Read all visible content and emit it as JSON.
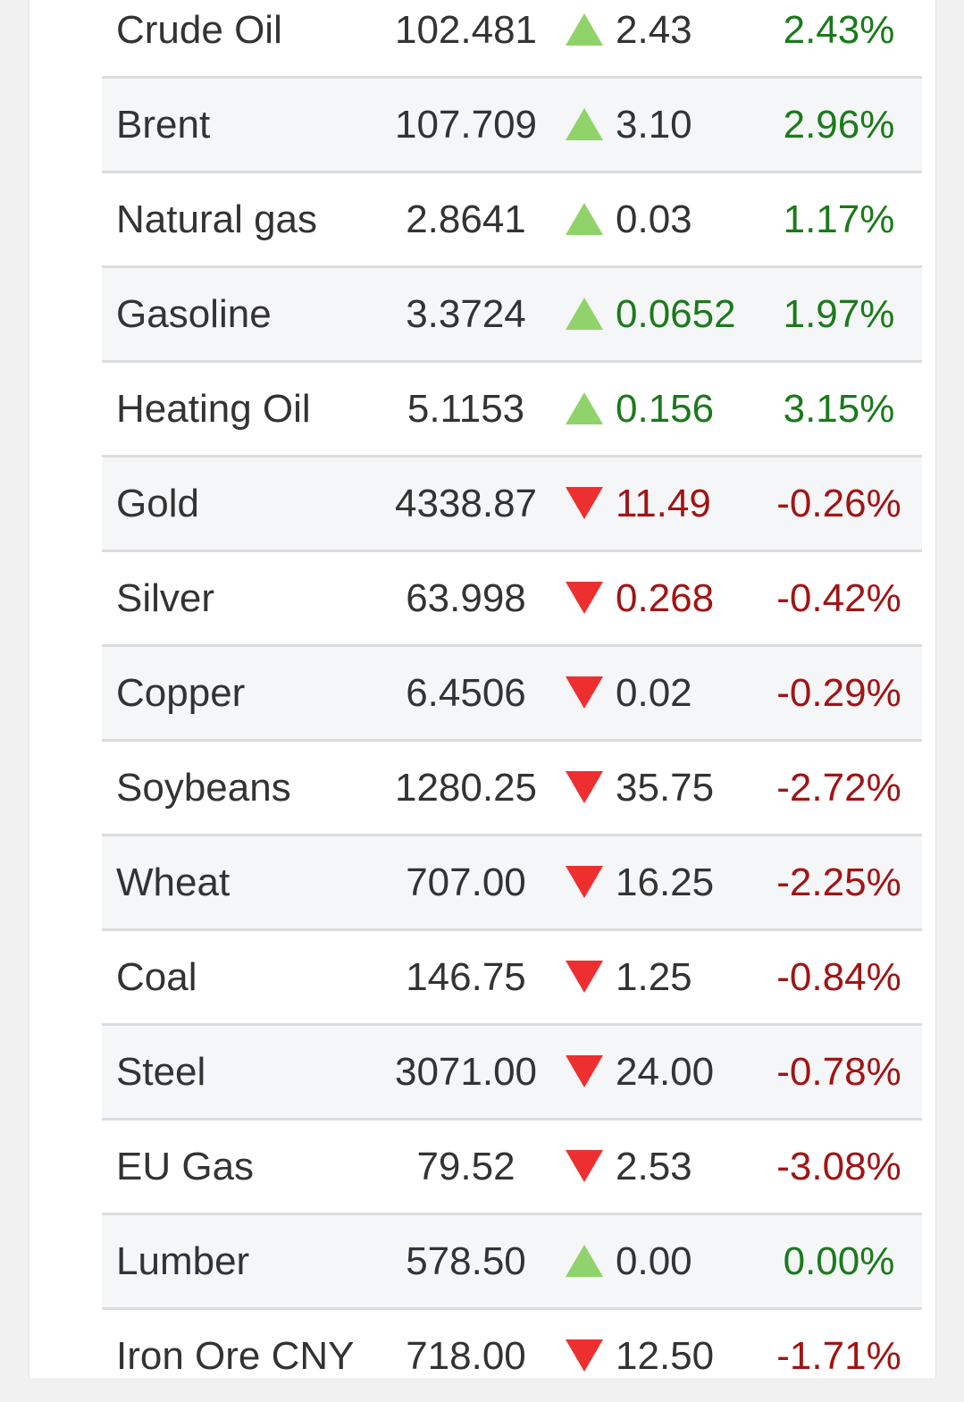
{
  "colors": {
    "up_arrow": "#8fd36a",
    "down_arrow": "#ee2f2f",
    "up_text": "#1a7a1a",
    "down_text": "#a11414"
  },
  "commodities": [
    {
      "name": "Crude Oil",
      "price": "102.481",
      "direction": "up",
      "change": "2.43",
      "change_colored": false,
      "percent": "2.43%"
    },
    {
      "name": "Brent",
      "price": "107.709",
      "direction": "up",
      "change": "3.10",
      "change_colored": false,
      "percent": "2.96%"
    },
    {
      "name": "Natural gas",
      "price": "2.8641",
      "direction": "up",
      "change": "0.03",
      "change_colored": false,
      "percent": "1.17%"
    },
    {
      "name": "Gasoline",
      "price": "3.3724",
      "direction": "up",
      "change": "0.0652",
      "change_colored": true,
      "percent": "1.97%"
    },
    {
      "name": "Heating Oil",
      "price": "5.1153",
      "direction": "up",
      "change": "0.156",
      "change_colored": true,
      "percent": "3.15%"
    },
    {
      "name": "Gold",
      "price": "4338.87",
      "direction": "down",
      "change": "11.49",
      "change_colored": true,
      "percent": "-0.26%"
    },
    {
      "name": "Silver",
      "price": "63.998",
      "direction": "down",
      "change": "0.268",
      "change_colored": true,
      "percent": "-0.42%"
    },
    {
      "name": "Copper",
      "price": "6.4506",
      "direction": "down",
      "change": "0.02",
      "change_colored": false,
      "percent": "-0.29%"
    },
    {
      "name": "Soybeans",
      "price": "1280.25",
      "direction": "down",
      "change": "35.75",
      "change_colored": false,
      "percent": "-2.72%"
    },
    {
      "name": "Wheat",
      "price": "707.00",
      "direction": "down",
      "change": "16.25",
      "change_colored": false,
      "percent": "-2.25%"
    },
    {
      "name": "Coal",
      "price": "146.75",
      "direction": "down",
      "change": "1.25",
      "change_colored": false,
      "percent": "-0.84%"
    },
    {
      "name": "Steel",
      "price": "3071.00",
      "direction": "down",
      "change": "24.00",
      "change_colored": false,
      "percent": "-0.78%"
    },
    {
      "name": "EU Gas",
      "price": "79.52",
      "direction": "down",
      "change": "2.53",
      "change_colored": false,
      "percent": "-3.08%"
    },
    {
      "name": "Lumber",
      "price": "578.50",
      "direction": "up",
      "change": "0.00",
      "change_colored": false,
      "percent": "0.00%"
    },
    {
      "name": "Iron Ore CNY",
      "price": "718.00",
      "direction": "down",
      "change": "12.50",
      "change_colored": false,
      "percent": "-1.71%"
    }
  ]
}
